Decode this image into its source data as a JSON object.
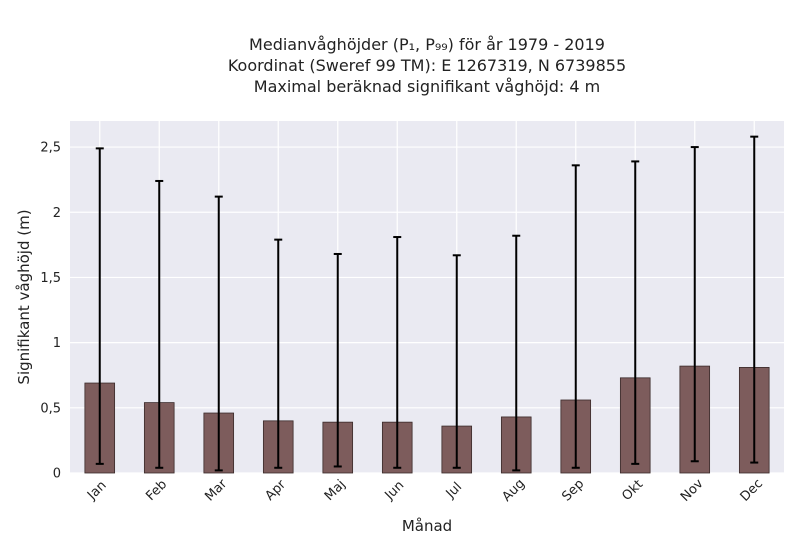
{
  "chart_data": {
    "type": "bar",
    "title": [
      "Medianvåghöjder (P₁, P₉₉) för år 1979 - 2019",
      "Koordinat (Sweref 99 TM): E 1267319, N 6739855",
      "Maximal beräknad signifikant våghöjd: 4 m"
    ],
    "xlabel": "Månad",
    "ylabel": "Signifikant våghöjd (m)",
    "categories": [
      "Jan",
      "Feb",
      "Mar",
      "Apr",
      "Maj",
      "Jun",
      "Jul",
      "Aug",
      "Sep",
      "Okt",
      "Nov",
      "Dec"
    ],
    "values": [
      0.69,
      0.54,
      0.46,
      0.4,
      0.39,
      0.39,
      0.36,
      0.43,
      0.56,
      0.73,
      0.82,
      0.81
    ],
    "error_low": [
      0.07,
      0.04,
      0.02,
      0.04,
      0.05,
      0.04,
      0.04,
      0.02,
      0.04,
      0.07,
      0.09,
      0.08
    ],
    "error_high": [
      2.49,
      2.24,
      2.12,
      1.79,
      1.68,
      1.81,
      1.67,
      1.82,
      2.36,
      2.39,
      2.5,
      2.58
    ],
    "ylim": [
      0,
      2.7
    ],
    "yticks": [
      0,
      0.5,
      1,
      1.5,
      2,
      2.5
    ],
    "ytick_labels": [
      "0",
      "0,5",
      "1",
      "1,5",
      "2",
      "2,5"
    ],
    "grid": true,
    "colors": {
      "bar": "#7d5c5c",
      "bar_edge": "#3a2a2a",
      "error": "#000000",
      "plot_bg": "#eaeaf2",
      "grid": "#ffffff"
    }
  }
}
